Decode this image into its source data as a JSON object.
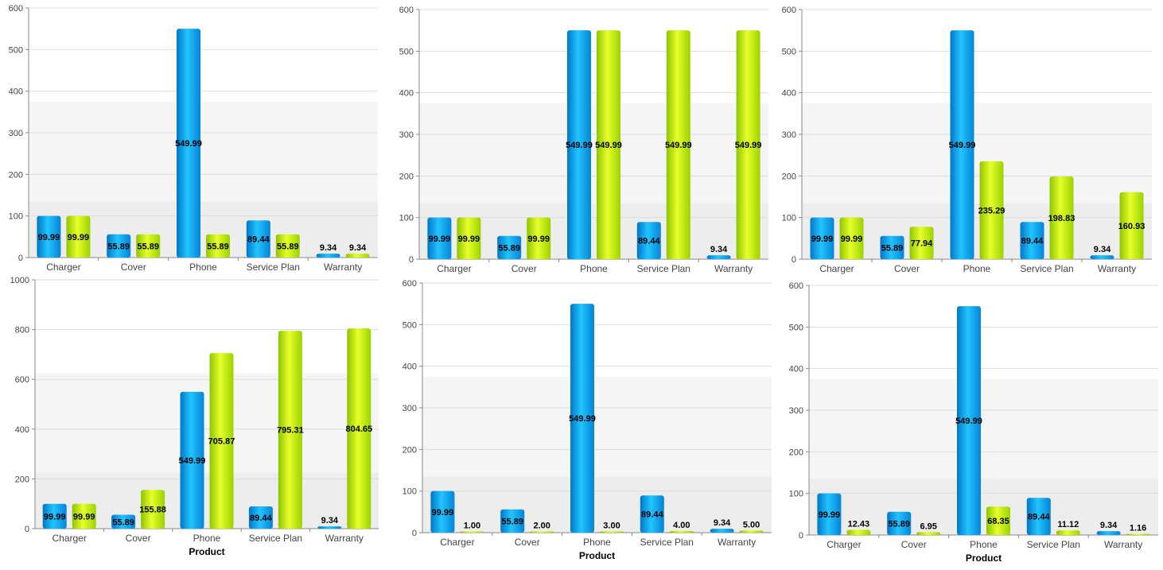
{
  "colors": {
    "series_a": "#0aa2ee",
    "series_b": "#c8f000",
    "band_light": "#f5f5f5",
    "band_dark": "#ededed",
    "axis": "#888888",
    "grid": "#dddddd"
  },
  "chart_data": [
    {
      "type": "bar",
      "categories": [
        "Charger",
        "Cover",
        "Phone",
        "Service Plan",
        "Warranty"
      ],
      "series": [
        {
          "values": [
            99.99,
            55.89,
            549.99,
            89.44,
            9.34
          ]
        },
        {
          "values": [
            99.99,
            55.89,
            55.89,
            55.89,
            9.34
          ]
        }
      ],
      "labels": [
        [
          "99.99",
          "55.89",
          "549.99",
          "89.44",
          "9.34"
        ],
        [
          "99.99",
          "55.89",
          "55.89",
          "55.89",
          "9.34"
        ]
      ],
      "ylim": [
        0,
        600
      ],
      "yticks": [
        "0",
        "100",
        "200",
        "300",
        "400",
        "500",
        "600"
      ],
      "xlabel": "",
      "grid": true
    },
    {
      "type": "bar",
      "categories": [
        "Charger",
        "Cover",
        "Phone",
        "Service Plan",
        "Warranty"
      ],
      "series": [
        {
          "values": [
            99.99,
            55.89,
            549.99,
            89.44,
            9.34
          ]
        },
        {
          "values": [
            99.99,
            99.99,
            549.99,
            549.99,
            549.99
          ]
        }
      ],
      "labels": [
        [
          "99.99",
          "55.89",
          "549.99",
          "89.44",
          "9.34"
        ],
        [
          "99.99",
          "99.99",
          "549.99",
          "549.99",
          "549.99"
        ]
      ],
      "ylim": [
        0,
        600
      ],
      "yticks": [
        "0",
        "100",
        "200",
        "300",
        "400",
        "500",
        "600"
      ],
      "xlabel": "",
      "grid": true
    },
    {
      "type": "bar",
      "categories": [
        "Charger",
        "Cover",
        "Phone",
        "Service Plan",
        "Warranty"
      ],
      "series": [
        {
          "values": [
            99.99,
            55.89,
            549.99,
            89.44,
            9.34
          ]
        },
        {
          "values": [
            99.99,
            77.94,
            235.29,
            198.83,
            160.93
          ]
        }
      ],
      "labels": [
        [
          "99.99",
          "55.89",
          "549.99",
          "89.44",
          "9.34"
        ],
        [
          "99.99",
          "77.94",
          "235.29",
          "198.83",
          "160.93"
        ]
      ],
      "ylim": [
        0,
        600
      ],
      "yticks": [
        "0",
        "100",
        "200",
        "300",
        "400",
        "500",
        "600"
      ],
      "xlabel": "",
      "grid": true
    },
    {
      "type": "bar",
      "categories": [
        "Charger",
        "Cover",
        "Phone",
        "Service Plan",
        "Warranty"
      ],
      "series": [
        {
          "values": [
            99.99,
            55.89,
            549.99,
            89.44,
            9.34
          ]
        },
        {
          "values": [
            99.99,
            155.88,
            705.87,
            795.31,
            804.65
          ]
        }
      ],
      "labels": [
        [
          "99.99",
          "55.89",
          "549.99",
          "89.44",
          "9.34"
        ],
        [
          "99.99",
          "155.88",
          "705.87",
          "795.31",
          "804.65"
        ]
      ],
      "ylim": [
        0,
        1000
      ],
      "yticks": [
        "0",
        "200",
        "400",
        "600",
        "800",
        "1000"
      ],
      "xlabel": "Product",
      "grid": true
    },
    {
      "type": "bar",
      "categories": [
        "Charger",
        "Cover",
        "Phone",
        "Service Plan",
        "Warranty"
      ],
      "series": [
        {
          "values": [
            99.99,
            55.89,
            549.99,
            89.44,
            9.34
          ]
        },
        {
          "values": [
            1.0,
            2.0,
            3.0,
            4.0,
            5.0
          ]
        }
      ],
      "labels": [
        [
          "99.99",
          "55.89",
          "549.99",
          "89.44",
          "9.34"
        ],
        [
          "1.00",
          "2.00",
          "3.00",
          "4.00",
          "5.00"
        ]
      ],
      "ylim": [
        0,
        600
      ],
      "yticks": [
        "0",
        "100",
        "200",
        "300",
        "400",
        "500",
        "600"
      ],
      "xlabel": "Product",
      "grid": true
    },
    {
      "type": "bar",
      "categories": [
        "Charger",
        "Cover",
        "Phone",
        "Service Plan",
        "Warranty"
      ],
      "series": [
        {
          "values": [
            99.99,
            55.89,
            549.99,
            89.44,
            9.34
          ]
        },
        {
          "values": [
            12.43,
            6.95,
            68.35,
            11.12,
            1.16
          ]
        }
      ],
      "labels": [
        [
          "99.99",
          "55.89",
          "549.99",
          "89.44",
          "9.34"
        ],
        [
          "12.43",
          "6.95",
          "68.35",
          "11.12",
          "1.16"
        ]
      ],
      "ylim": [
        0,
        600
      ],
      "yticks": [
        "0",
        "100",
        "200",
        "300",
        "400",
        "500",
        "600"
      ],
      "xlabel": "Product",
      "grid": true
    }
  ]
}
